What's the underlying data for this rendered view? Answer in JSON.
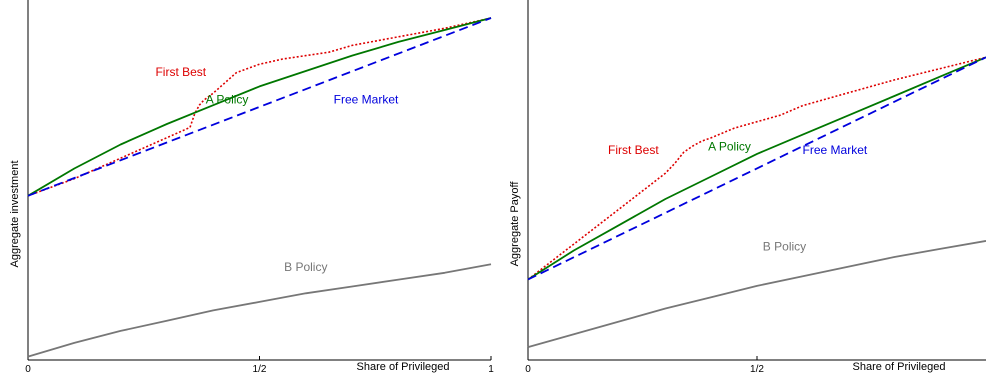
{
  "chart_data": [
    {
      "type": "line",
      "ylabel": "Aggregate investment",
      "xlabel": "Share of Privileged",
      "xlim": [
        0,
        1
      ],
      "ylim": [
        0,
        1
      ],
      "grid": false,
      "xticks": [
        {
          "value": 0,
          "label": "0"
        },
        {
          "value": 0.5,
          "label": "1/2"
        },
        {
          "value": 1,
          "label": "1"
        }
      ],
      "series": [
        {
          "name": "First Best",
          "color": "#dd0000",
          "dash": "dotted",
          "x": [
            0,
            0.1,
            0.2,
            0.3,
            0.35,
            0.36,
            0.37,
            0.38,
            0.4,
            0.45,
            0.5,
            0.55,
            0.6,
            0.65,
            0.7,
            0.8,
            0.9,
            1.0
          ],
          "y": [
            0.48,
            0.53,
            0.59,
            0.65,
            0.68,
            0.72,
            0.745,
            0.76,
            0.78,
            0.84,
            0.865,
            0.88,
            0.89,
            0.9,
            0.92,
            0.945,
            0.97,
            1.0
          ]
        },
        {
          "name": "A Policy",
          "color": "#007700",
          "dash": "solid",
          "x": [
            0,
            0.1,
            0.2,
            0.3,
            0.4,
            0.5,
            0.6,
            0.7,
            0.8,
            0.9,
            1.0
          ],
          "y": [
            0.48,
            0.56,
            0.63,
            0.69,
            0.745,
            0.8,
            0.845,
            0.89,
            0.93,
            0.965,
            1.0
          ]
        },
        {
          "name": "Free Market",
          "color": "#0000dd",
          "dash": "dashed",
          "x": [
            0,
            1
          ],
          "y": [
            0.48,
            1.0
          ]
        },
        {
          "name": "B Policy",
          "color": "#777777",
          "dash": "solid",
          "x": [
            0,
            0.1,
            0.2,
            0.3,
            0.4,
            0.5,
            0.6,
            0.7,
            0.8,
            0.9,
            1.0
          ],
          "y": [
            0.01,
            0.05,
            0.085,
            0.115,
            0.145,
            0.17,
            0.195,
            0.215,
            0.235,
            0.255,
            0.28
          ]
        }
      ],
      "annotations": [
        {
          "text": "First Best",
          "x": 0.33,
          "y": 0.83,
          "color": "#dd0000"
        },
        {
          "text": "A Policy",
          "x": 0.43,
          "y": 0.75,
          "color": "#007700"
        },
        {
          "text": "Free Market",
          "x": 0.73,
          "y": 0.75,
          "color": "#0000dd"
        },
        {
          "text": "B Policy",
          "x": 0.6,
          "y": 0.26,
          "color": "#777777"
        }
      ]
    },
    {
      "type": "line",
      "ylabel": "Aggregate Payoff",
      "xlabel": "Share of Privileged",
      "xlim": [
        0,
        1
      ],
      "ylim": [
        0,
        1
      ],
      "grid": false,
      "xticks": [
        {
          "value": 0,
          "label": "0"
        },
        {
          "value": 0.5,
          "label": "1/2"
        }
      ],
      "series": [
        {
          "name": "First Best",
          "color": "#dd0000",
          "dash": "dotted",
          "x": [
            0,
            0.1,
            0.2,
            0.3,
            0.32,
            0.34,
            0.36,
            0.38,
            0.4,
            0.45,
            0.5,
            0.55,
            0.6,
            0.7,
            0.8,
            0.9,
            1.0
          ],
          "y": [
            0.25,
            0.36,
            0.47,
            0.58,
            0.61,
            0.645,
            0.665,
            0.68,
            0.69,
            0.72,
            0.74,
            0.76,
            0.79,
            0.83,
            0.87,
            0.905,
            0.94
          ]
        },
        {
          "name": "A Policy",
          "color": "#007700",
          "dash": "solid",
          "x": [
            0,
            0.1,
            0.2,
            0.3,
            0.4,
            0.5,
            0.6,
            0.7,
            0.8,
            0.9,
            1.0
          ],
          "y": [
            0.25,
            0.34,
            0.42,
            0.5,
            0.57,
            0.64,
            0.7,
            0.76,
            0.82,
            0.88,
            0.94
          ]
        },
        {
          "name": "Free Market",
          "color": "#0000dd",
          "dash": "dashed",
          "x": [
            0,
            1
          ],
          "y": [
            0.25,
            0.94
          ]
        },
        {
          "name": "B Policy",
          "color": "#777777",
          "dash": "solid",
          "x": [
            0,
            0.1,
            0.2,
            0.3,
            0.4,
            0.5,
            0.6,
            0.7,
            0.8,
            0.9,
            1.0
          ],
          "y": [
            0.04,
            0.08,
            0.12,
            0.16,
            0.195,
            0.23,
            0.26,
            0.29,
            0.32,
            0.345,
            0.37
          ]
        }
      ],
      "annotations": [
        {
          "text": "First Best",
          "x": 0.23,
          "y": 0.64,
          "color": "#dd0000"
        },
        {
          "text": "A Policy",
          "x": 0.44,
          "y": 0.65,
          "color": "#007700"
        },
        {
          "text": "Free Market",
          "x": 0.67,
          "y": 0.64,
          "color": "#0000dd"
        },
        {
          "text": "B Policy",
          "x": 0.56,
          "y": 0.34,
          "color": "#777777"
        }
      ]
    }
  ]
}
